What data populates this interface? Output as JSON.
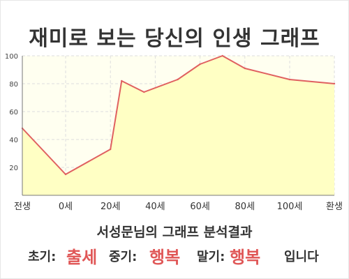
{
  "title": "재미로 보는 당신의 인생 그래프",
  "chart_data": {
    "type": "area",
    "x_categories": [
      "전생",
      "0세",
      "20세",
      "40세",
      "60세",
      "80세",
      "100세",
      "환생"
    ],
    "y_ticks": [
      20,
      40,
      60,
      80,
      100
    ],
    "ylim": [
      0,
      100
    ],
    "grid": true,
    "colors": {
      "line": "#e06060",
      "fill": "#ffffc4",
      "plot_bg": "#fffff0",
      "grid": "#dedede"
    },
    "series": [
      {
        "points": [
          {
            "x": "전생",
            "y": 48
          },
          {
            "x": "0세",
            "y": 15
          },
          {
            "x": "20세",
            "y": 33
          },
          {
            "x": "25세",
            "y": 82
          },
          {
            "x": "35세",
            "y": 74
          },
          {
            "x": "50세",
            "y": 83
          },
          {
            "x": "60세",
            "y": 94
          },
          {
            "x": "70세",
            "y": 100
          },
          {
            "x": "80세",
            "y": 91
          },
          {
            "x": "100세",
            "y": 83
          },
          {
            "x": "환생",
            "y": 80
          }
        ]
      }
    ]
  },
  "caption": {
    "name_line": "서성문님의 그래프 분석결과",
    "early_label": "초기:",
    "early_value": "출세",
    "middle_label": "중기:",
    "middle_value": "행복",
    "late_label": "말기:",
    "late_value": "행복",
    "ending": "입니다"
  }
}
